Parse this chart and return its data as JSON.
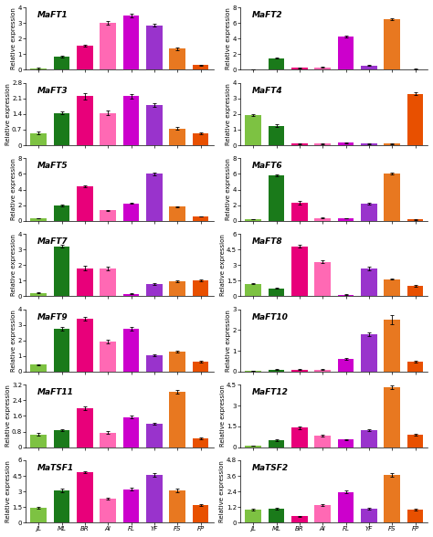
{
  "categories": [
    "JL",
    "ML",
    "BR",
    "AI",
    "FL",
    "YF",
    "FS",
    "FP"
  ],
  "bar_colors": [
    "#7dc242",
    "#1a7a1a",
    "#e8007a",
    "#ff69b4",
    "#cc00cc",
    "#9933cc",
    "#e87820",
    "#e85000"
  ],
  "panels": [
    {
      "title": "MaFT1",
      "col": 0,
      "row": 0,
      "ylim": [
        0,
        4.0
      ],
      "yticks": [
        0.0,
        1.0,
        2.0,
        3.0,
        4.0
      ],
      "values": [
        0.08,
        0.85,
        1.55,
        3.0,
        3.5,
        2.85,
        1.35,
        0.3
      ],
      "errors": [
        0.04,
        0.07,
        0.07,
        0.12,
        0.12,
        0.1,
        0.1,
        0.04
      ]
    },
    {
      "title": "MaFT2",
      "col": 1,
      "row": 0,
      "ylim": [
        0,
        8.0
      ],
      "yticks": [
        0.0,
        2.0,
        4.0,
        6.0,
        8.0
      ],
      "values": [
        0.05,
        1.5,
        0.25,
        0.3,
        4.3,
        0.55,
        6.5,
        0.1
      ],
      "errors": [
        0.02,
        0.1,
        0.04,
        0.04,
        0.1,
        0.04,
        0.1,
        0.02
      ]
    },
    {
      "title": "MaFT3",
      "col": 0,
      "row": 1,
      "ylim": [
        0,
        2.8
      ],
      "yticks": [
        0.0,
        0.7,
        1.4,
        2.1,
        2.8
      ],
      "values": [
        0.55,
        1.45,
        2.2,
        1.45,
        2.2,
        1.8,
        0.75,
        0.55
      ],
      "errors": [
        0.07,
        0.06,
        0.13,
        0.09,
        0.1,
        0.07,
        0.06,
        0.04
      ]
    },
    {
      "title": "MaFT4",
      "col": 1,
      "row": 1,
      "ylim": [
        0,
        4.0
      ],
      "yticks": [
        0.0,
        1.0,
        2.0,
        3.0,
        4.0
      ],
      "values": [
        1.95,
        1.25,
        0.1,
        0.1,
        0.15,
        0.1,
        0.1,
        3.3
      ],
      "errors": [
        0.06,
        0.07,
        0.02,
        0.02,
        0.02,
        0.02,
        0.02,
        0.08
      ]
    },
    {
      "title": "MaFT5",
      "col": 0,
      "row": 2,
      "ylim": [
        0,
        8.0
      ],
      "yticks": [
        0.0,
        2.0,
        4.0,
        6.0,
        8.0
      ],
      "values": [
        0.3,
        1.95,
        4.4,
        1.35,
        2.2,
        6.0,
        1.8,
        0.55
      ],
      "errors": [
        0.04,
        0.07,
        0.12,
        0.07,
        0.07,
        0.14,
        0.09,
        0.04
      ]
    },
    {
      "title": "MaFT6",
      "col": 1,
      "row": 2,
      "ylim": [
        0,
        8.0
      ],
      "yticks": [
        0.0,
        2.0,
        4.0,
        6.0,
        8.0
      ],
      "values": [
        0.2,
        5.8,
        2.3,
        0.35,
        0.3,
        2.2,
        6.1,
        0.15
      ],
      "errors": [
        0.03,
        0.14,
        0.2,
        0.04,
        0.04,
        0.08,
        0.12,
        0.03
      ]
    },
    {
      "title": "MaFT7",
      "col": 0,
      "row": 3,
      "ylim": [
        0,
        4.0
      ],
      "yticks": [
        0.0,
        1.0,
        2.0,
        3.0,
        4.0
      ],
      "values": [
        0.2,
        3.2,
        1.8,
        1.8,
        0.15,
        0.8,
        0.95,
        1.0
      ],
      "errors": [
        0.03,
        0.1,
        0.14,
        0.12,
        0.02,
        0.06,
        0.07,
        0.06
      ]
    },
    {
      "title": "MaFT8",
      "col": 1,
      "row": 3,
      "ylim": [
        0,
        6.0
      ],
      "yticks": [
        0.0,
        1.5,
        3.0,
        4.5,
        6.0
      ],
      "values": [
        1.2,
        0.75,
        4.8,
        3.3,
        0.15,
        2.7,
        1.65,
        1.0
      ],
      "errors": [
        0.07,
        0.05,
        0.14,
        0.12,
        0.03,
        0.17,
        0.08,
        0.07
      ]
    },
    {
      "title": "MaFT9",
      "col": 0,
      "row": 4,
      "ylim": [
        0,
        4.0
      ],
      "yticks": [
        0.0,
        1.0,
        2.0,
        3.0,
        4.0
      ],
      "values": [
        0.45,
        2.75,
        3.4,
        1.95,
        2.75,
        1.05,
        1.3,
        0.65
      ],
      "errors": [
        0.04,
        0.09,
        0.11,
        0.11,
        0.09,
        0.06,
        0.07,
        0.04
      ]
    },
    {
      "title": "MaFT10",
      "col": 1,
      "row": 4,
      "ylim": [
        0,
        3.0
      ],
      "yticks": [
        0.0,
        1.0,
        2.0,
        3.0
      ],
      "values": [
        0.05,
        0.1,
        0.1,
        0.1,
        0.6,
        1.8,
        2.5,
        0.5
      ],
      "errors": [
        0.01,
        0.02,
        0.02,
        0.02,
        0.05,
        0.1,
        0.2,
        0.04
      ]
    },
    {
      "title": "MaFT11",
      "col": 0,
      "row": 5,
      "ylim": [
        0,
        3.2
      ],
      "yticks": [
        0.0,
        0.8,
        1.6,
        2.4,
        3.2
      ],
      "values": [
        0.65,
        0.88,
        2.0,
        0.75,
        1.55,
        1.2,
        2.85,
        0.45
      ],
      "errors": [
        0.06,
        0.06,
        0.11,
        0.06,
        0.07,
        0.06,
        0.09,
        0.04
      ]
    },
    {
      "title": "MaFT12",
      "col": 1,
      "row": 5,
      "ylim": [
        0,
        4.5
      ],
      "yticks": [
        0.0,
        1.5,
        3.0,
        4.5
      ],
      "values": [
        0.1,
        0.5,
        1.4,
        0.85,
        0.55,
        1.2,
        4.3,
        0.9
      ],
      "errors": [
        0.02,
        0.04,
        0.09,
        0.06,
        0.04,
        0.07,
        0.14,
        0.06
      ]
    },
    {
      "title": "MaTSF1",
      "col": 0,
      "row": 6,
      "ylim": [
        0,
        6.0
      ],
      "yticks": [
        0.0,
        1.5,
        3.0,
        4.5,
        6.0
      ],
      "values": [
        1.4,
        3.1,
        4.85,
        2.3,
        3.2,
        4.6,
        3.1,
        1.7
      ],
      "errors": [
        0.09,
        0.14,
        0.12,
        0.1,
        0.14,
        0.18,
        0.14,
        0.09
      ]
    },
    {
      "title": "MaTSF2",
      "col": 1,
      "row": 6,
      "ylim": [
        0,
        4.8
      ],
      "yticks": [
        0.0,
        1.2,
        2.4,
        3.6,
        4.8
      ],
      "values": [
        1.0,
        1.1,
        0.5,
        1.35,
        2.35,
        1.1,
        3.7,
        1.0
      ],
      "errors": [
        0.07,
        0.07,
        0.04,
        0.07,
        0.1,
        0.07,
        0.14,
        0.06
      ]
    }
  ],
  "ylabel": "Relative expression",
  "background_color": "#ffffff",
  "title_fontsize": 6.5,
  "tick_fontsize": 5.0,
  "label_fontsize": 5.0
}
